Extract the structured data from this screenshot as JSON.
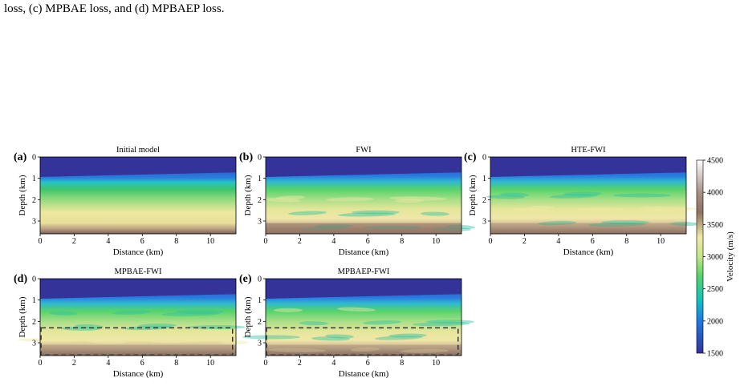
{
  "caption": "loss, (c) MPBAE loss, and (d) MPBAEP loss.",
  "panels": [
    {
      "label": "(a)",
      "title": "Initial model"
    },
    {
      "label": "(b)",
      "title": "FWI"
    },
    {
      "label": "(c)",
      "title": "HTE-FWI"
    },
    {
      "label": "(d)",
      "title": "MPBAE-FWI"
    },
    {
      "label": "(e)",
      "title": "MPBAEP-FWI"
    }
  ],
  "x_axis_label": "Distance (km)",
  "y_axis_label": "Depth (km)",
  "xlim": [
    0,
    11.5
  ],
  "ylim": [
    0,
    3.6
  ],
  "xticks": [
    0,
    2,
    4,
    6,
    8,
    10
  ],
  "yticks": [
    0,
    1,
    2,
    3
  ],
  "colorbar": {
    "label": "Velocity (m/s)",
    "lim": [
      1500,
      4500
    ],
    "ticks": [
      1500,
      2000,
      2500,
      3000,
      3500,
      4000,
      4500
    ]
  }
}
